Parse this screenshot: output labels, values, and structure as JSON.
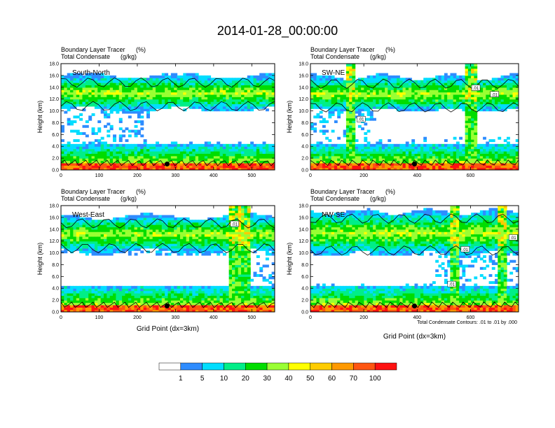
{
  "title": "2014-01-28_00:00:00",
  "x_axis_label": "Grid Point (dx=3km)",
  "contour_note": "Total Condensate Contours: .01 to .01 by .000",
  "colors": [
    "#ffffff",
    "#2e8cff",
    "#00ddff",
    "#00ee88",
    "#00dd00",
    "#99ff33",
    "#ffff00",
    "#ffcc00",
    "#ff9900",
    "#ff5511",
    "#ff1111"
  ],
  "colorbar": {
    "labels": [
      "1",
      "5",
      "10",
      "20",
      "30",
      "40",
      "50",
      "60",
      "70",
      "100"
    ]
  },
  "chart_data": [
    {
      "type": "heatmap",
      "panel_label": "South-North",
      "subtitle_line1": "Boundary Layer Tracer",
      "subtitle_units1": "(%)",
      "subtitle_line2": "Total Condensate",
      "subtitle_units2": "(g/kg)",
      "ylabel": "Height (km)",
      "xlim": [
        0,
        560
      ],
      "ylim": [
        0,
        18
      ],
      "x_ticks": [
        0,
        100,
        200,
        300,
        400,
        500
      ],
      "y_ticks": [
        "0.0",
        "2.0",
        "4.0",
        "6.0",
        "8.0",
        "10.0",
        "12.0",
        "14.0",
        "16.0",
        "18.0"
      ],
      "marker_x": 278,
      "anvil_y": [
        10.2,
        16.0
      ],
      "clear_x": [
        230,
        560
      ],
      "clear_y": [
        4.6,
        10.0
      ],
      "towers": [],
      "contour_labels": []
    },
    {
      "type": "heatmap",
      "panel_label": "SW-NE",
      "subtitle_line1": "Boundary Layer Tracer",
      "subtitle_units1": "(%)",
      "subtitle_line2": "Total Condensate",
      "subtitle_units2": "(g/kg)",
      "ylabel": "Height (km)",
      "xlim": [
        0,
        780
      ],
      "ylim": [
        0,
        18
      ],
      "x_ticks": [
        0,
        200,
        400,
        600
      ],
      "y_ticks": [
        "0.0",
        "2.0",
        "4.0",
        "6.0",
        "8.0",
        "10.0",
        "12.0",
        "14.0",
        "16.0",
        "18.0"
      ],
      "marker_x": 390,
      "anvil_y": [
        10.0,
        15.8
      ],
      "clear_x": [
        240,
        780
      ],
      "clear_y": [
        5.4,
        9.8
      ],
      "towers": [
        150,
        600
      ],
      "contour_labels": [
        {
          "text": ".01",
          "x": 190,
          "y": 8.5
        },
        {
          "text": ".01",
          "x": 620,
          "y": 13.8
        },
        {
          "text": ".01",
          "x": 690,
          "y": 12.7
        }
      ]
    },
    {
      "type": "heatmap",
      "panel_label": "West-East",
      "subtitle_line1": "Boundary Layer Tracer",
      "subtitle_units1": "(%)",
      "subtitle_line2": "Total Condensate",
      "subtitle_units2": "(g/kg)",
      "ylabel": "Height (km)",
      "xlim": [
        0,
        560
      ],
      "ylim": [
        0,
        18
      ],
      "x_ticks": [
        0,
        100,
        200,
        300,
        400,
        500
      ],
      "y_ticks": [
        "0.0",
        "2.0",
        "4.0",
        "6.0",
        "8.0",
        "10.0",
        "12.0",
        "14.0",
        "16.0",
        "18.0"
      ],
      "marker_x": 278,
      "anvil_y": [
        10.2,
        16.2
      ],
      "clear_x": [
        0,
        440
      ],
      "clear_y": [
        4.4,
        9.6
      ],
      "towers": [
        455,
        480
      ],
      "contour_labels": [
        {
          "text": ".01",
          "x": 455,
          "y": 14.8
        }
      ]
    },
    {
      "type": "heatmap",
      "panel_label": "NW-SE",
      "subtitle_line1": "Boundary Layer Tracer",
      "subtitle_units1": "(%)",
      "subtitle_line2": "Total Condensate",
      "subtitle_units2": "(g/kg)",
      "ylabel": "Height (km)",
      "xlim": [
        0,
        780
      ],
      "ylim": [
        0,
        18
      ],
      "x_ticks": [
        0,
        200,
        400,
        600
      ],
      "y_ticks": [
        "0.0",
        "2.0",
        "4.0",
        "6.0",
        "8.0",
        "10.0",
        "12.0",
        "14.0",
        "16.0",
        "18.0"
      ],
      "marker_x": 390,
      "anvil_y": [
        9.8,
        17.0
      ],
      "clear_x": [
        0,
        460
      ],
      "clear_y": [
        4.8,
        9.6
      ],
      "towers": [
        540,
        720
      ],
      "contour_labels": [
        {
          "text": ".01",
          "x": 580,
          "y": 10.5
        },
        {
          "text": ".01",
          "x": 530,
          "y": 4.6
        },
        {
          "text": ".01",
          "x": 760,
          "y": 12.5
        }
      ]
    }
  ]
}
